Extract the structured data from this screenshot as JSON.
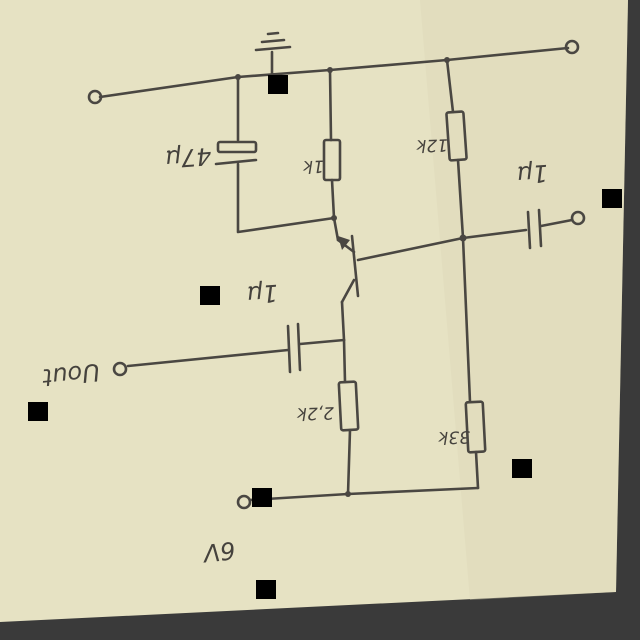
{
  "colors": {
    "paper": "#e6e2c3",
    "ink": "#4a4742",
    "background": "#3a3a3a",
    "marker": "#000000"
  },
  "labels": {
    "cap_emitter_bypass": "47µ",
    "res_collector": "1k",
    "res_base_upper": "12k",
    "cap_output": "1µ",
    "cap_input": "1µ",
    "res_emitter": "2,2k",
    "res_base_lower": "33k",
    "input_label": "Uout",
    "supply_label": "6V"
  }
}
